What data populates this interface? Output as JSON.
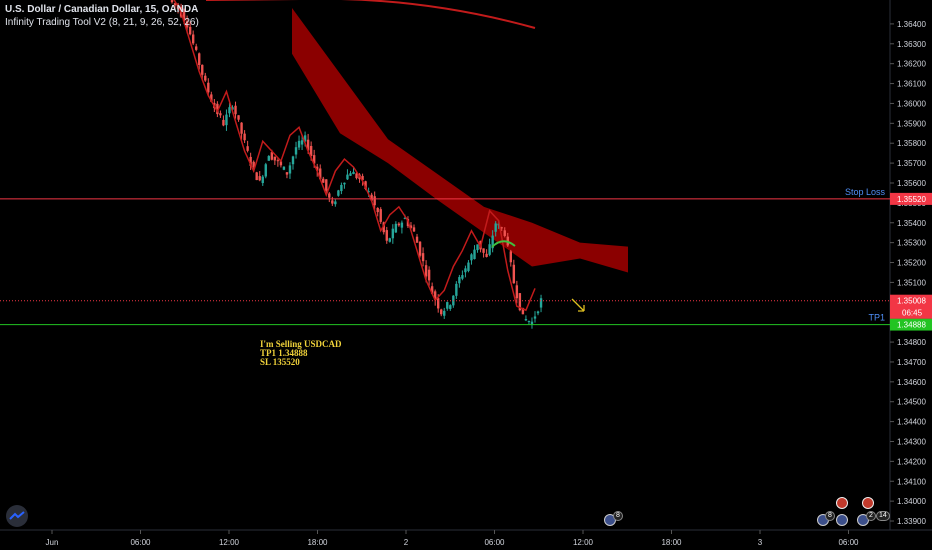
{
  "header": {
    "symbol_line": "U.S. Dollar / Canadian Dollar, 15, OANDA",
    "indicator_line": "Infinity Trading Tool V2 (8, 21, 9, 26, 52, 26)"
  },
  "note": {
    "line1": "I'm Selling USDCAD",
    "line2": "TP1 1.34888",
    "line3": "SL 135520"
  },
  "colors": {
    "background": "#000000",
    "up_candle": "#26a69a",
    "down_candle": "#ef5350",
    "cloud": "#8b0000",
    "ma_line": "#c21b1b",
    "stop_loss": "#f23645",
    "tp1": "#22c422",
    "current_price": "#f23645",
    "note_text": "#f0d23a"
  },
  "events": {
    "badge_center": "8",
    "badge_right_a": "8",
    "badge_right_b": "2",
    "badge_right_c": "14"
  },
  "chart_data": {
    "type": "candlestick",
    "title": "U.S. Dollar / Canadian Dollar, 15, OANDA",
    "price_axis": {
      "min": 1.3388,
      "max": 1.3648,
      "ticks": [
        "1.36400",
        "1.36300",
        "1.36200",
        "1.36100",
        "1.36000",
        "1.35900",
        "1.35800",
        "1.35700",
        "1.35600",
        "1.35500",
        "1.35400",
        "1.35300",
        "1.35200",
        "1.35100",
        "1.35000",
        "1.34900",
        "1.34800",
        "1.34700",
        "1.34600",
        "1.34500",
        "1.34400",
        "1.34300",
        "1.34200",
        "1.34100",
        "1.34000",
        "1.33900"
      ]
    },
    "time_axis": {
      "labels": [
        "Jun",
        "06:00",
        "12:00",
        "18:00",
        "2",
        "06:00",
        "12:00",
        "18:00",
        "3",
        "06:00"
      ]
    },
    "levels": [
      {
        "name": "Stop Loss",
        "price": 1.3552,
        "label": "1.35520"
      },
      {
        "name": "TP1",
        "price": 1.34888,
        "label": "1.34888"
      },
      {
        "name": "current",
        "price": 1.35008,
        "label": "1.35008",
        "countdown": "06:45"
      }
    ],
    "series": [
      {
        "name": "candles",
        "ohlc_anchor_closes": [
          1.3648,
          1.364,
          1.3625,
          1.361,
          1.3598,
          1.359,
          1.36,
          1.3585,
          1.357,
          1.356,
          1.3575,
          1.357,
          1.3565,
          1.3578,
          1.3582,
          1.357,
          1.356,
          1.3548,
          1.356,
          1.3566,
          1.3562,
          1.3555,
          1.3545,
          1.353,
          1.3538,
          1.3542,
          1.3535,
          1.352,
          1.3505,
          1.3495,
          1.35,
          1.3512,
          1.352,
          1.353,
          1.3522,
          1.354,
          1.3535,
          1.351,
          1.3492,
          1.349,
          1.3501
        ]
      },
      {
        "name": "cloud_top",
        "points": [
          [
            1.3648,
            0
          ],
          [
            1.3615,
            1
          ],
          [
            1.3582,
            2
          ],
          [
            1.3565,
            3
          ],
          [
            1.3548,
            4
          ],
          [
            1.354,
            5
          ],
          [
            1.353,
            6
          ],
          [
            1.3528,
            7
          ]
        ]
      },
      {
        "name": "cloud_bottom",
        "points": [
          [
            1.3625,
            0
          ],
          [
            1.3585,
            1
          ],
          [
            1.357,
            2
          ],
          [
            1.3552,
            3
          ],
          [
            1.3535,
            4
          ],
          [
            1.3518,
            5
          ],
          [
            1.3522,
            6
          ],
          [
            1.3515,
            7
          ]
        ]
      }
    ]
  }
}
